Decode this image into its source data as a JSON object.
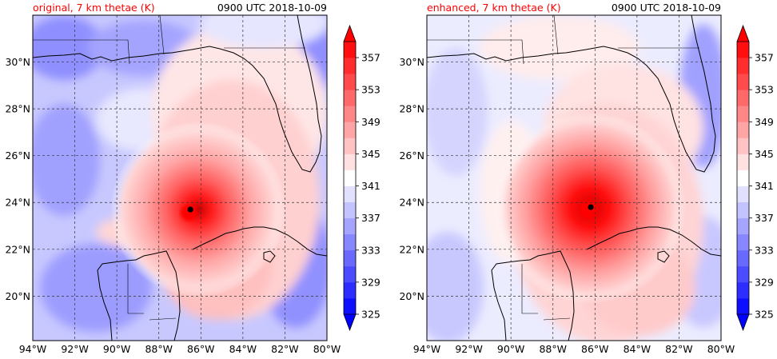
{
  "panels": [
    {
      "title_left": "original, 7 km thetae (K)",
      "title_right": "0900 UTC 2018-10-09",
      "eye": {
        "lon": -86.5,
        "lat": 23.7
      }
    },
    {
      "title_left": "enhanced, 7 km thetae (K)",
      "title_right": "0900 UTC 2018-10-09",
      "eye": {
        "lon": -86.2,
        "lat": 23.8
      }
    }
  ],
  "lon_ticks": [
    "94°W",
    "92°W",
    "90°W",
    "88°W",
    "86°W",
    "84°W",
    "82°W",
    "80°W"
  ],
  "lat_ticks": [
    "20°N",
    "22°N",
    "24°N",
    "26°N",
    "28°N",
    "30°N"
  ],
  "lon_range": [
    -94,
    -80
  ],
  "lat_range": [
    18.1,
    32.0
  ],
  "colorbar": {
    "labels": [
      "325",
      "329",
      "333",
      "337",
      "341",
      "345",
      "349",
      "353",
      "357"
    ],
    "min": 325,
    "max": 359,
    "step": 2,
    "low_color": "#0000ff",
    "mid_color": "#ffffff",
    "high_color": "#ff0000"
  },
  "colors": {
    "cold": "#8c8cff",
    "warm": "#ff7070",
    "eye": "#000000"
  }
}
